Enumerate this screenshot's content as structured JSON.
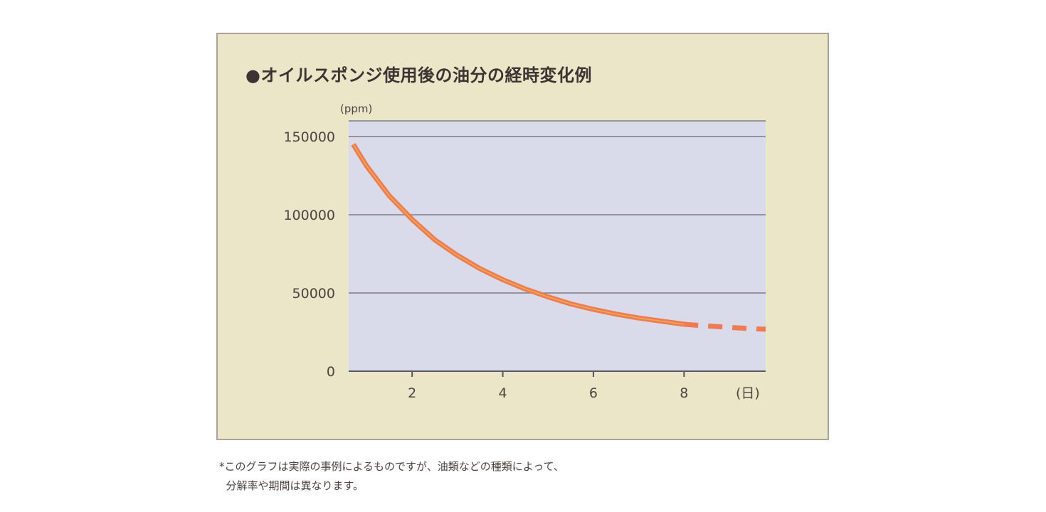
{
  "chart_data": {
    "type": "line",
    "title": "●オイルスポンジ使用後の油分の経時変化例",
    "ylabel": "(ppm)",
    "xlabel": "(日)",
    "ylim": [
      0,
      160000
    ],
    "xlim": [
      0.6,
      9.8
    ],
    "yticks": [
      {
        "value": 0,
        "label": "0"
      },
      {
        "value": 50000,
        "label": "50000"
      },
      {
        "value": 100000,
        "label": "100000"
      },
      {
        "value": 150000,
        "label": "150000"
      }
    ],
    "xticks": [
      {
        "value": 2,
        "label": "2"
      },
      {
        "value": 4,
        "label": "4"
      },
      {
        "value": 6,
        "label": "6"
      },
      {
        "value": 8,
        "label": "8"
      }
    ],
    "grid": true,
    "colors": {
      "line_outer": "#f07a52",
      "line_inner": "#e8b84a",
      "plot_bg": "#d9daea",
      "panel_bg": "#ece6c9",
      "grid": "#7c7c86"
    },
    "series": [
      {
        "style": "solid",
        "x": [
          0.7,
          1.0,
          1.5,
          2.0,
          2.5,
          3.0,
          3.5,
          4.0,
          4.5,
          5.0,
          5.5,
          6.0,
          6.5,
          7.0,
          7.5,
          8.0
        ],
        "y": [
          145000,
          131000,
          112000,
          97000,
          84000,
          74000,
          65500,
          58500,
          52500,
          47500,
          43000,
          39500,
          36500,
          34000,
          32000,
          30000
        ]
      },
      {
        "style": "dashed",
        "x": [
          8.0,
          8.5,
          9.0,
          9.5,
          9.8
        ],
        "y": [
          30000,
          28900,
          28000,
          27200,
          26800
        ]
      }
    ]
  },
  "footnote": {
    "line1": "*このグラフは実際の事例によるものですが、油類などの種類によって、",
    "line2": "  分解率や期間は異なります。"
  }
}
